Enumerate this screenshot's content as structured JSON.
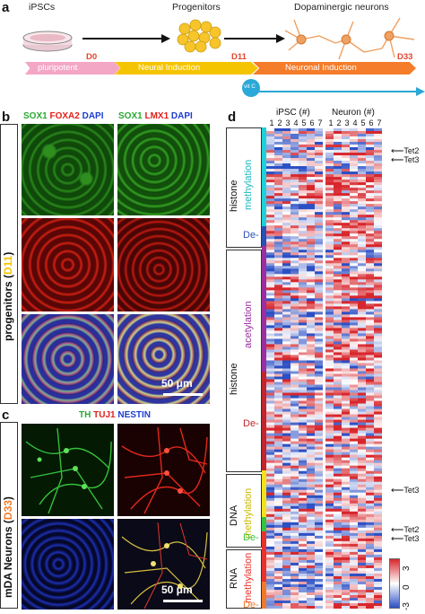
{
  "panels": {
    "a": "a",
    "b": "b",
    "c": "c",
    "d": "d"
  },
  "timeline": {
    "stages": [
      "iPSCs",
      "Progenitors",
      "Dopaminergic neurons"
    ],
    "phases": [
      "pluripotent",
      "Neural Induction",
      "Neuronal Induction"
    ],
    "days": [
      "D0",
      "D11",
      "D33"
    ],
    "vitc": "vit C",
    "colors": {
      "pluripotent": "#f4a6c5",
      "neural": "#f5c400",
      "neuronal": "#f57c2a",
      "vitc": "#2aa8d8"
    }
  },
  "panel_b": {
    "col1": {
      "sox1": "SOX1",
      "foxa2": "FOXA2",
      "dapi": "DAPI"
    },
    "col2": {
      "sox1": "SOX1",
      "lmx1": "LMX1",
      "dapi": "DAPI"
    },
    "side_pre": "progenitors (",
    "side_day": "D11",
    "side_post": ")",
    "scale": "50 μm"
  },
  "panel_c": {
    "th": "TH",
    "tuj1": "TUJ1",
    "nestin": "NESTIN",
    "side_pre": "mDA Neurons (",
    "side_day": "D33",
    "side_post": ")",
    "scale": "50 μm"
  },
  "panel_d": {
    "header_ipsc": "iPSC (#)",
    "header_neuron": "Neuron (#)",
    "col_numbers": [
      "1",
      "2",
      "3",
      "4",
      "5",
      "6",
      "7",
      "1",
      "2",
      "3",
      "4",
      "5",
      "6",
      "7"
    ],
    "groups": [
      {
        "outer": "histone",
        "inner": "methylation",
        "color": "#1fd0d8"
      },
      {
        "outer": "",
        "inner": "De-",
        "color": "#2a4fb8"
      },
      {
        "outer": "histone",
        "inner": "acetylation",
        "color": "#9a2fa0"
      },
      {
        "outer": "",
        "inner": "De-",
        "color": "#c0262b"
      },
      {
        "outer": "DNA",
        "inner": "methylation",
        "color": "#f2e21b"
      },
      {
        "outer": "",
        "inner": "De-",
        "color": "#37c43a"
      },
      {
        "outer": "RNA",
        "inner": "methylation",
        "color": "#e8322c"
      },
      {
        "outer": "",
        "inner": "De-",
        "color": "#f07a2a"
      }
    ],
    "markers": [
      {
        "label": "Tet2",
        "group": "histone-methylation"
      },
      {
        "label": "Tet3",
        "group": "histone-methylation"
      },
      {
        "label": "Tet3",
        "group": "DNA-methylation"
      },
      {
        "label": "Tet2",
        "group": "DNA-demethylation"
      },
      {
        "label": "Tet3",
        "group": "DNA-demethylation"
      }
    ],
    "colorbar": {
      "max": "3",
      "mid": "0",
      "min": "-3",
      "colors": [
        "#d7262c",
        "#ffffff",
        "#2b4fc4"
      ]
    }
  }
}
